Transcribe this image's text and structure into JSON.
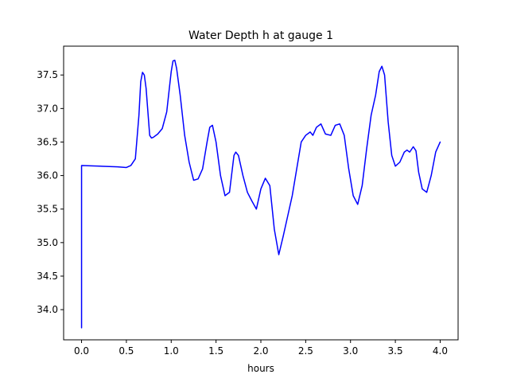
{
  "chart_data": {
    "type": "line",
    "title": "Water Depth h at gauge 1",
    "xlabel": "hours",
    "ylabel": "",
    "xlim": [
      -0.2,
      4.2
    ],
    "ylim": [
      33.55,
      37.93
    ],
    "xticks": [
      0.0,
      0.5,
      1.0,
      1.5,
      2.0,
      2.5,
      3.0,
      3.5,
      4.0
    ],
    "xtick_labels": [
      "0.0",
      "0.5",
      "1.0",
      "1.5",
      "2.0",
      "2.5",
      "3.0",
      "3.5",
      "4.0"
    ],
    "yticks": [
      34.0,
      34.5,
      35.0,
      35.5,
      36.0,
      36.5,
      37.0,
      37.5
    ],
    "ytick_labels": [
      "34.0",
      "34.5",
      "35.0",
      "35.5",
      "36.0",
      "36.5",
      "37.0",
      "37.5"
    ],
    "grid": false,
    "series": [
      {
        "color": "#0000ff",
        "x": [
          0.0,
          0.0,
          0.005,
          0.2,
          0.4,
          0.5,
          0.55,
          0.6,
          0.64,
          0.66,
          0.68,
          0.7,
          0.72,
          0.74,
          0.76,
          0.78,
          0.8,
          0.85,
          0.9,
          0.95,
          1.0,
          1.02,
          1.04,
          1.06,
          1.08,
          1.1,
          1.15,
          1.2,
          1.25,
          1.3,
          1.35,
          1.4,
          1.43,
          1.46,
          1.5,
          1.55,
          1.6,
          1.65,
          1.7,
          1.72,
          1.75,
          1.8,
          1.85,
          1.9,
          1.95,
          2.0,
          2.05,
          2.1,
          2.15,
          2.2,
          2.25,
          2.3,
          2.35,
          2.4,
          2.45,
          2.5,
          2.55,
          2.58,
          2.62,
          2.67,
          2.72,
          2.78,
          2.83,
          2.88,
          2.93,
          2.98,
          3.03,
          3.08,
          3.13,
          3.18,
          3.23,
          3.28,
          3.32,
          3.35,
          3.38,
          3.42,
          3.46,
          3.5,
          3.55,
          3.6,
          3.63,
          3.66,
          3.7,
          3.73,
          3.76,
          3.8,
          3.85,
          3.9,
          3.95,
          4.0
        ],
        "y": [
          33.73,
          36.15,
          36.15,
          36.14,
          36.13,
          36.12,
          36.15,
          36.25,
          36.9,
          37.4,
          37.54,
          37.5,
          37.3,
          36.95,
          36.6,
          36.56,
          36.57,
          36.62,
          36.7,
          36.95,
          37.55,
          37.71,
          37.72,
          37.6,
          37.4,
          37.2,
          36.6,
          36.2,
          35.93,
          35.95,
          36.1,
          36.5,
          36.72,
          36.75,
          36.5,
          36.0,
          35.7,
          35.75,
          36.3,
          36.35,
          36.3,
          36.0,
          35.75,
          35.62,
          35.5,
          35.8,
          35.96,
          35.85,
          35.2,
          34.82,
          35.1,
          35.4,
          35.7,
          36.1,
          36.5,
          36.6,
          36.65,
          36.6,
          36.72,
          36.77,
          36.62,
          36.6,
          36.75,
          36.77,
          36.6,
          36.1,
          35.7,
          35.57,
          35.85,
          36.4,
          36.9,
          37.2,
          37.55,
          37.63,
          37.5,
          36.8,
          36.3,
          36.14,
          36.2,
          36.35,
          36.38,
          36.35,
          36.43,
          36.37,
          36.05,
          35.8,
          35.75,
          36.0,
          36.35,
          36.5
        ]
      }
    ]
  }
}
